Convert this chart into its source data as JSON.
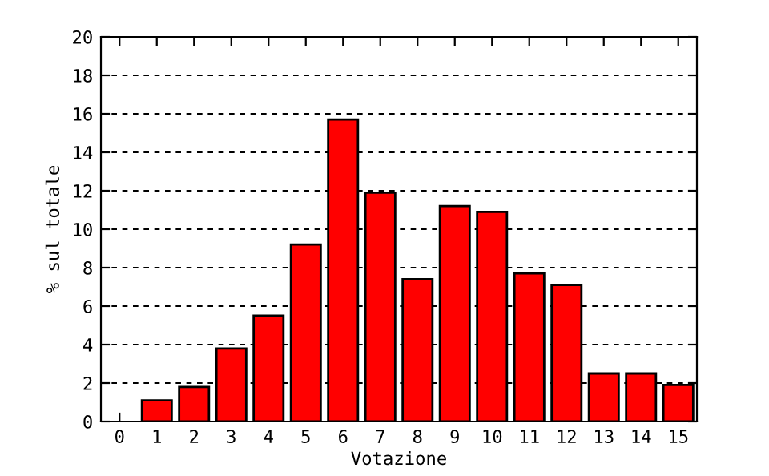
{
  "chart_data": {
    "type": "bar",
    "xlabel": "Votazione",
    "ylabel": "% sul totale",
    "categories": [
      "0",
      "1",
      "2",
      "3",
      "4",
      "5",
      "6",
      "7",
      "8",
      "9",
      "10",
      "11",
      "12",
      "13",
      "14",
      "15"
    ],
    "values": [
      0,
      1.1,
      1.8,
      3.8,
      5.5,
      9.2,
      15.7,
      11.9,
      7.4,
      11.2,
      10.9,
      7.7,
      7.1,
      2.5,
      2.5,
      1.9
    ],
    "color": "#ff0000",
    "ylim": [
      0,
      20
    ],
    "yticks": [
      0,
      2,
      4,
      6,
      8,
      10,
      12,
      14,
      16,
      18,
      20
    ],
    "grid": "y"
  }
}
